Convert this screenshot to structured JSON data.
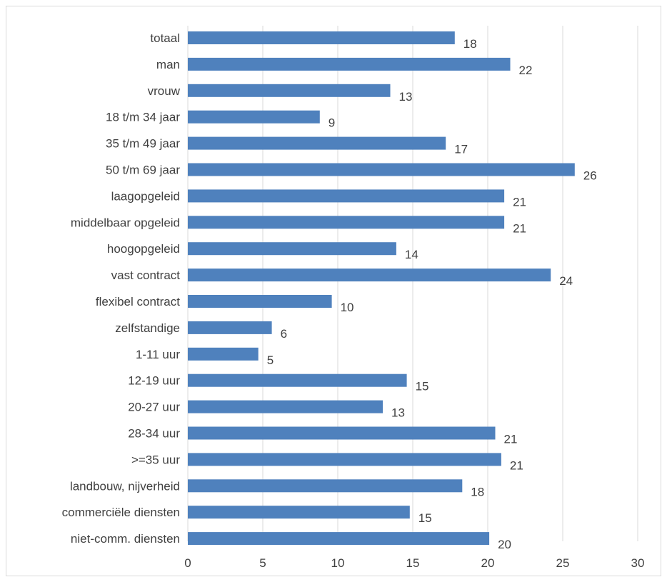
{
  "chart_data": {
    "type": "bar",
    "orientation": "horizontal",
    "categories": [
      "totaal",
      "man",
      "vrouw",
      "18 t/m 34 jaar",
      "35 t/m 49 jaar",
      "50 t/m 69 jaar",
      "laagopgeleid",
      "middelbaar opgeleid",
      "hoogopgeleid",
      "vast contract",
      "flexibel contract",
      "zelfstandige",
      "1-11 uur",
      "12-19 uur",
      "20-27 uur",
      "28-34 uur",
      ">=35 uur",
      "landbouw, nijverheid",
      "commerciële diensten",
      "niet-comm. diensten"
    ],
    "values": [
      17.8,
      21.5,
      13.5,
      8.8,
      17.2,
      25.8,
      21.1,
      21.1,
      13.9,
      24.2,
      9.6,
      5.6,
      4.7,
      14.6,
      13.0,
      20.5,
      20.9,
      18.3,
      14.8,
      20.1
    ],
    "data_labels": [
      "18",
      "22",
      "13",
      "9",
      "17",
      "26",
      "21",
      "21",
      "14",
      "24",
      "10",
      "6",
      "5",
      "15",
      "13",
      "21",
      "21",
      "18",
      "15",
      "20"
    ],
    "title": "",
    "xlabel": "",
    "ylabel": "",
    "xlim": [
      0,
      30
    ],
    "x_ticks": [
      0,
      5,
      10,
      15,
      20,
      25,
      30
    ],
    "x_tick_labels": [
      "0",
      "5",
      "10",
      "15",
      "20",
      "25",
      "30"
    ],
    "grid": "vertical",
    "legend": "none",
    "bar_color": "#4f81bd",
    "grid_color": "#d9d9d9",
    "text_color": "#404040"
  }
}
